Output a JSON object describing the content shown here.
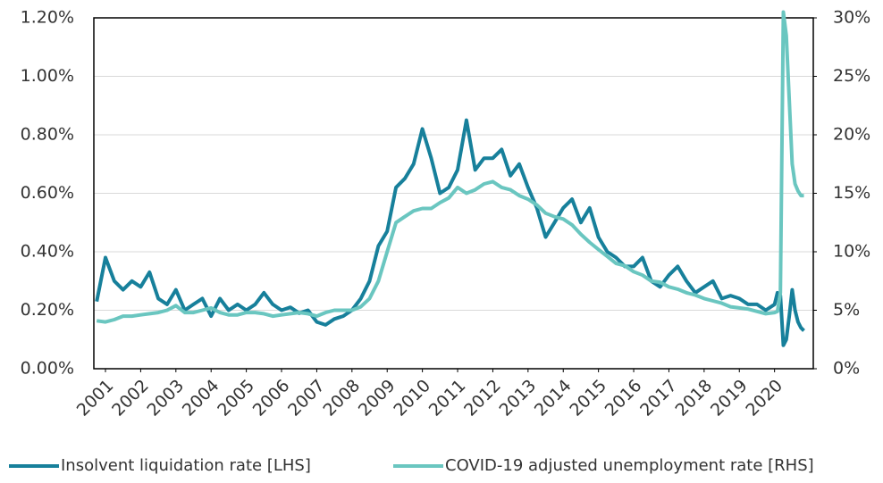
{
  "chart_data": {
    "type": "line",
    "x": [
      2000.75,
      2001.0,
      2001.25,
      2001.5,
      2001.75,
      2002.0,
      2002.25,
      2002.5,
      2002.75,
      2003.0,
      2003.25,
      2003.5,
      2003.75,
      2004.0,
      2004.25,
      2004.5,
      2004.75,
      2005.0,
      2005.25,
      2005.5,
      2005.75,
      2006.0,
      2006.25,
      2006.5,
      2006.75,
      2007.0,
      2007.25,
      2007.5,
      2007.75,
      2008.0,
      2008.25,
      2008.5,
      2008.75,
      2009.0,
      2009.25,
      2009.5,
      2009.75,
      2010.0,
      2010.25,
      2010.5,
      2010.75,
      2011.0,
      2011.25,
      2011.5,
      2011.75,
      2012.0,
      2012.25,
      2012.5,
      2012.75,
      2013.0,
      2013.25,
      2013.5,
      2013.75,
      2014.0,
      2014.25,
      2014.5,
      2014.75,
      2015.0,
      2015.25,
      2015.5,
      2015.75,
      2016.0,
      2016.25,
      2016.5,
      2016.75,
      2017.0,
      2017.25,
      2017.5,
      2017.75,
      2018.0,
      2018.25,
      2018.5,
      2018.75,
      2019.0,
      2019.25,
      2019.5,
      2019.75,
      2020.0,
      2020.083,
      2020.167,
      2020.25,
      2020.333,
      2020.417,
      2020.5,
      2020.583,
      2020.667,
      2020.75,
      2020.833
    ],
    "series": [
      {
        "name": "Insolvent liquidation rate [LHS]",
        "color": "#17809b",
        "axis": "y",
        "values": [
          0.23,
          0.38,
          0.3,
          0.27,
          0.3,
          0.28,
          0.33,
          0.24,
          0.22,
          0.27,
          0.2,
          0.22,
          0.24,
          0.18,
          0.24,
          0.2,
          0.22,
          0.2,
          0.22,
          0.26,
          0.22,
          0.2,
          0.21,
          0.19,
          0.2,
          0.16,
          0.15,
          0.17,
          0.18,
          0.2,
          0.24,
          0.3,
          0.42,
          0.47,
          0.62,
          0.65,
          0.7,
          0.82,
          0.72,
          0.6,
          0.62,
          0.68,
          0.85,
          0.68,
          0.72,
          0.72,
          0.75,
          0.66,
          0.7,
          0.62,
          0.55,
          0.45,
          0.5,
          0.55,
          0.58,
          0.5,
          0.55,
          0.45,
          0.4,
          0.38,
          0.35,
          0.35,
          0.38,
          0.3,
          0.28,
          0.32,
          0.35,
          0.3,
          0.26,
          0.28,
          0.3,
          0.24,
          0.25,
          0.24,
          0.22,
          0.22,
          0.2,
          0.22,
          0.26,
          0.25,
          0.08,
          0.1,
          0.18,
          0.27,
          0.2,
          0.16,
          0.14,
          0.13
        ]
      },
      {
        "name": "COVID-19 adjusted unemployment rate [RHS]",
        "color": "#6ac6c0",
        "axis": "y2",
        "values": [
          4.1,
          4.0,
          4.2,
          4.5,
          4.5,
          4.6,
          4.7,
          4.8,
          5.0,
          5.4,
          4.8,
          4.8,
          5.0,
          5.2,
          4.8,
          4.6,
          4.6,
          4.8,
          4.8,
          4.7,
          4.5,
          4.6,
          4.7,
          4.8,
          4.7,
          4.5,
          4.8,
          5.0,
          5.0,
          5.0,
          5.3,
          6.0,
          7.5,
          10.0,
          12.5,
          13.0,
          13.5,
          13.7,
          13.7,
          14.2,
          14.6,
          15.5,
          15.0,
          15.3,
          15.8,
          16.0,
          15.5,
          15.3,
          14.8,
          14.5,
          14.0,
          13.3,
          13.0,
          12.8,
          12.3,
          11.5,
          10.8,
          10.2,
          9.6,
          9.0,
          8.8,
          8.3,
          8.0,
          7.5,
          7.4,
          7.0,
          6.8,
          6.5,
          6.3,
          6.0,
          5.8,
          5.6,
          5.3,
          5.2,
          5.1,
          4.9,
          4.7,
          4.8,
          4.9,
          6.5,
          30.5,
          28.5,
          23.0,
          17.5,
          15.8,
          15.2,
          14.8,
          14.8
        ]
      }
    ],
    "xlim": [
      2000.67,
      2021.1
    ],
    "xticks": [
      2001,
      2002,
      2003,
      2004,
      2005,
      2006,
      2007,
      2008,
      2009,
      2010,
      2011,
      2012,
      2013,
      2014,
      2015,
      2016,
      2017,
      2018,
      2019,
      2020
    ],
    "ylim": [
      0,
      1.2
    ],
    "yticks": [
      {
        "value": 0,
        "label": "0.00%"
      },
      {
        "value": 0.2,
        "label": "0.20%"
      },
      {
        "value": 0.4,
        "label": "0.40%"
      },
      {
        "value": 0.6,
        "label": "0.60%"
      },
      {
        "value": 0.8,
        "label": "0.80%"
      },
      {
        "value": 1.0,
        "label": "1.00%"
      },
      {
        "value": 1.2,
        "label": "1.20%"
      }
    ],
    "y2lim": [
      0,
      30
    ],
    "y2ticks": [
      {
        "value": 0,
        "label": "0%"
      },
      {
        "value": 5,
        "label": "5%"
      },
      {
        "value": 10,
        "label": "10%"
      },
      {
        "value": 15,
        "label": "15%"
      },
      {
        "value": 20,
        "label": "20%"
      },
      {
        "value": 25,
        "label": "25%"
      },
      {
        "value": 30,
        "label": "30%"
      }
    ],
    "grid": true,
    "legend": "bottom"
  }
}
